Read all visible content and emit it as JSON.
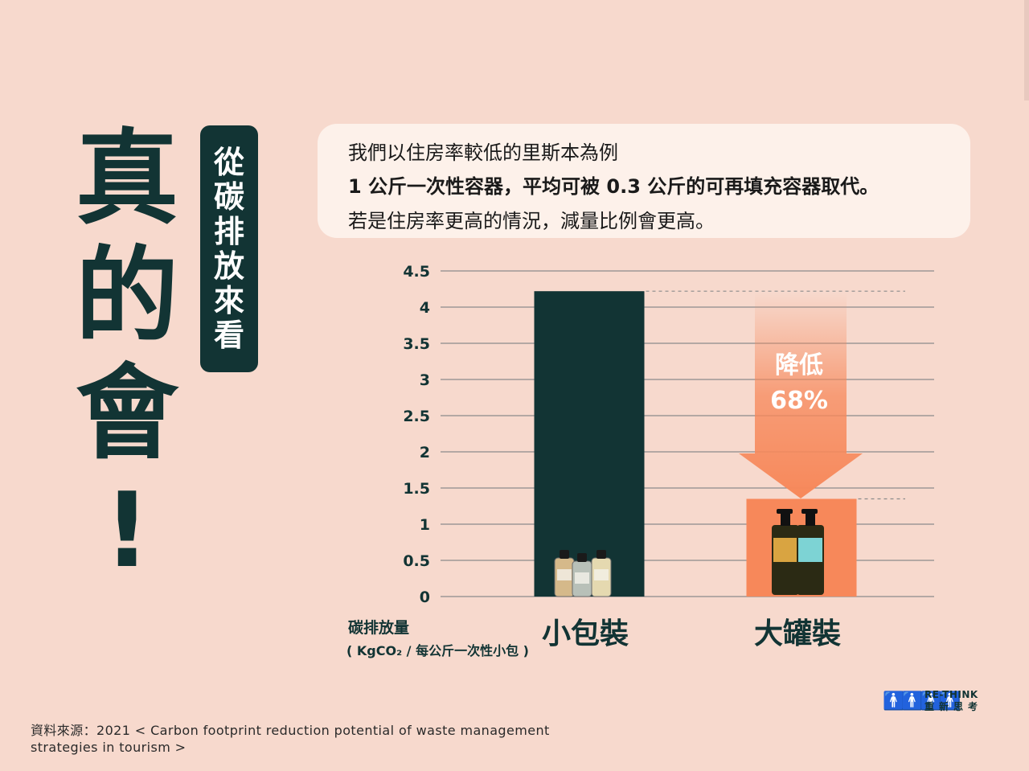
{
  "headline": [
    "真",
    "的",
    "會",
    "!"
  ],
  "tag": [
    "從",
    "碳",
    "排",
    "放",
    "來",
    "看"
  ],
  "note": {
    "line1": "我們以住房率較低的里斯本為例",
    "line2": "1 公斤一次性容器，平均可被 0.3 公斤的可再填充容器取代。",
    "line3": "若是住房率更高的情況，減量比例會更高。"
  },
  "arrow": {
    "line1": "降低",
    "line2": "68%"
  },
  "ylabel_line1": "碳排放量",
  "ylabel_line2": "( KgCO₂ / 每公斤一次性小包 )",
  "chart_data": {
    "type": "bar",
    "categories": [
      "小包裝",
      "大罐裝"
    ],
    "values": [
      4.22,
      1.35
    ],
    "ylim": [
      0,
      4.5
    ],
    "yticks": [
      "0",
      "0.5",
      "1",
      "1.5",
      "2",
      "2.5",
      "3",
      "3.5",
      "4",
      "4.5"
    ],
    "grid": true,
    "colors": [
      "#123434",
      "#f7885a"
    ]
  },
  "source_line1": "資料來源：2021 < Carbon footprint reduction potential of waste management",
  "source_line2": "strategies in tourism >",
  "logo": {
    "en": "RE-THINK",
    "zh": "重新思考",
    "icon": "people-icon"
  }
}
